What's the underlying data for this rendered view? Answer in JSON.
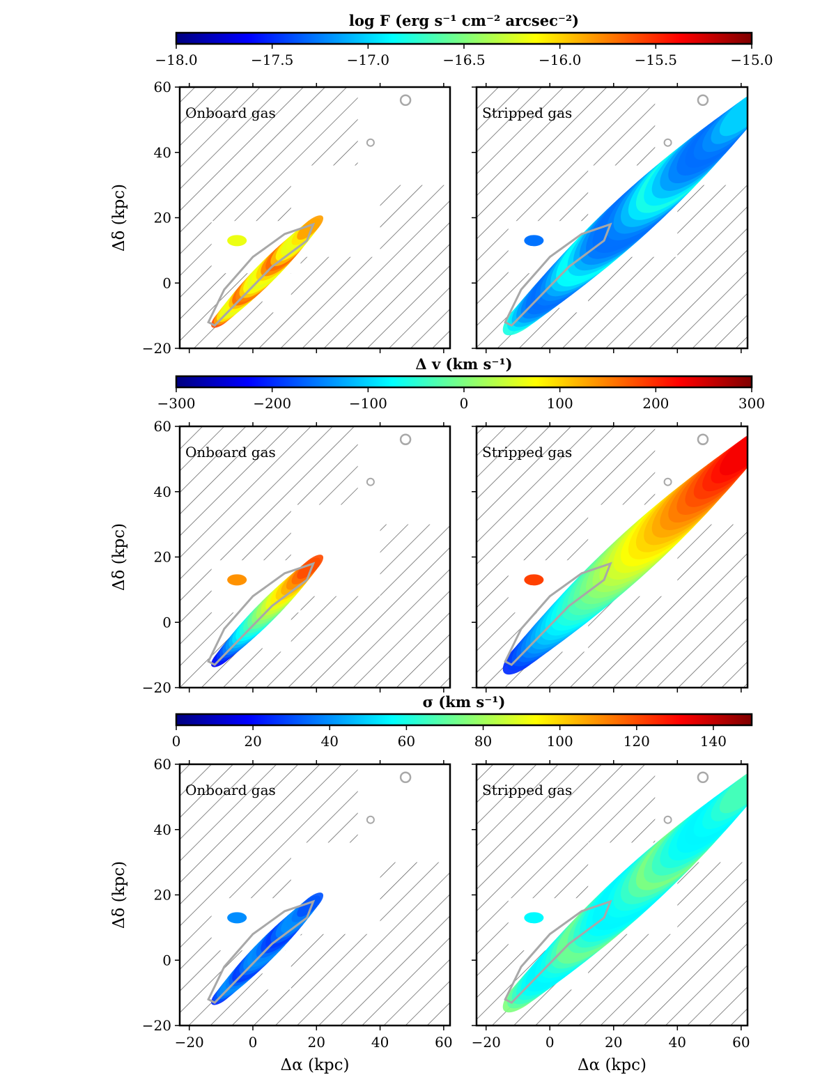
{
  "chart_data": {
    "type": "heatmap",
    "layout": "3 rows x 2 columns, one horizontal colorbar above each row",
    "shared_axes": {
      "xlabel": "Δα (kpc)",
      "ylabel": "Δδ (kpc)",
      "xlim": [
        -23,
        62
      ],
      "ylim": [
        -20,
        60
      ],
      "xticks": [
        -20,
        0,
        20,
        40,
        60
      ],
      "yticks": [
        -20,
        0,
        20,
        40,
        60
      ],
      "xtick_labels": [
        "−20",
        "0",
        "20",
        "40",
        "60"
      ],
      "ytick_labels": [
        "−20",
        "0",
        "20",
        "40",
        "60"
      ]
    },
    "rows": [
      {
        "quantity": "log F",
        "colorbar": {
          "title": "log F (erg s⁻¹ cm⁻² arcsec⁻²)",
          "range": [
            -18.0,
            -15.0
          ],
          "ticks": [
            -18.0,
            -17.5,
            -17.0,
            -16.5,
            -16.0,
            -15.5,
            -15.0
          ],
          "tick_labels": [
            "−18.0",
            "−17.5",
            "−17.0",
            "−16.5",
            "−16.0",
            "−15.5",
            "−15.0"
          ],
          "colormap": "jet"
        },
        "panels": [
          {
            "label": "Onboard gas",
            "typical_value": -15.6,
            "edge_value": -16.2
          },
          {
            "label": "Stripped gas",
            "typical_value": -16.8,
            "edge_value": -17.3
          }
        ]
      },
      {
        "quantity": "Δv",
        "colorbar": {
          "title": "Δ v (km s⁻¹)",
          "range": [
            -300,
            300
          ],
          "ticks": [
            -300,
            -200,
            -100,
            0,
            100,
            200,
            300
          ],
          "tick_labels": [
            "−300",
            "−200",
            "−100",
            "0",
            "100",
            "200",
            "300"
          ],
          "colormap": "jet"
        },
        "panels": [
          {
            "label": "Onboard gas",
            "gradient": [
              -230,
              180
            ]
          },
          {
            "label": "Stripped gas",
            "gradient": [
              -200,
              230
            ]
          }
        ]
      },
      {
        "quantity": "σ",
        "colorbar": {
          "title": "σ (km s⁻¹)",
          "range": [
            0,
            150
          ],
          "ticks": [
            0,
            20,
            40,
            60,
            80,
            100,
            120,
            140
          ],
          "tick_labels": [
            "0",
            "20",
            "40",
            "60",
            "80",
            "100",
            "120",
            "140"
          ],
          "colormap": "jet"
        },
        "panels": [
          {
            "label": "Onboard gas",
            "typical_value": 25,
            "edge_value": 40
          },
          {
            "label": "Stripped gas",
            "typical_value": 75,
            "edge_value": 55
          }
        ]
      }
    ],
    "colors": {
      "jet_stops": [
        "#00007f",
        "#0000ff",
        "#007fff",
        "#00ffff",
        "#7fff7f",
        "#ffff00",
        "#ff7f00",
        "#ff0000",
        "#7f0000"
      ],
      "contour": "#a8a8a8",
      "hatch": "#555555"
    }
  }
}
